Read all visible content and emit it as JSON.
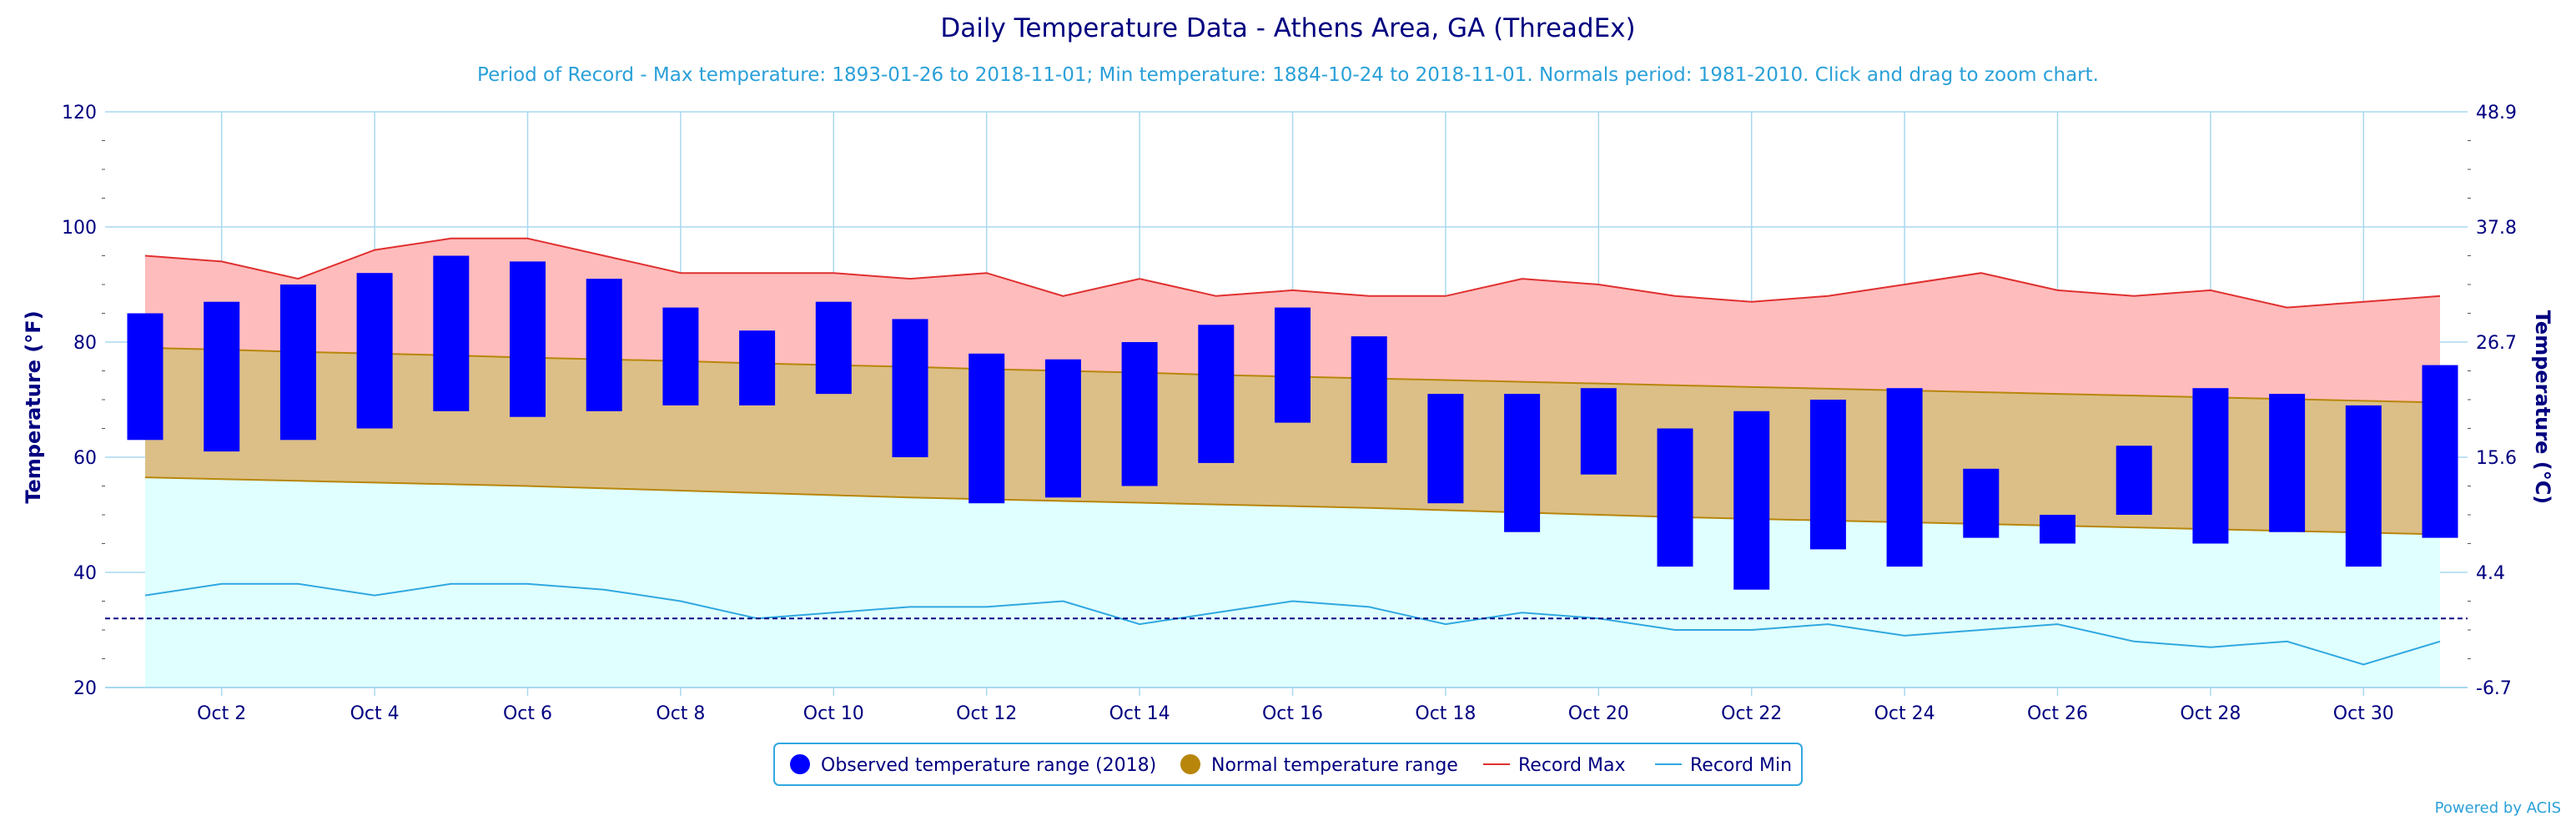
{
  "title": "Daily Temperature Data - Athens Area, GA (ThreadEx)",
  "subtitle": "Period of Record - Max temperature: 1893-01-26 to 2018-11-01; Min temperature: 1884-10-24 to 2018-11-01. Normals period: 1981-2010. Click and drag to zoom chart.",
  "y_axis_left_title": "Temperature (°F)",
  "y_axis_right_title": "Temperature (°C)",
  "credits": "Powered by ACIS",
  "legend": {
    "observed": "Observed temperature range (2018)",
    "normal": "Normal temperature range",
    "record_max": "Record Max",
    "record_min": "Record Min"
  },
  "colors": {
    "observed": "#0000ff",
    "normal_fill": "#dcbf86",
    "normal_line": "#b8860b",
    "record_max_line": "#e03030",
    "record_max_fill": "#ffbcbc",
    "record_min_line": "#30a8e0",
    "record_min_fill": "#e0ffff",
    "freezing": "#000080",
    "grid": "#a8d8f0"
  },
  "chart_data": {
    "type": "bar",
    "days": [
      1,
      2,
      3,
      4,
      5,
      6,
      7,
      8,
      9,
      10,
      11,
      12,
      13,
      14,
      15,
      16,
      17,
      18,
      19,
      20,
      21,
      22,
      23,
      24,
      25,
      26,
      27,
      28,
      29,
      30,
      31
    ],
    "x_tick_labels": [
      "Oct 2",
      "Oct 4",
      "Oct 6",
      "Oct 8",
      "Oct 10",
      "Oct 12",
      "Oct 14",
      "Oct 16",
      "Oct 18",
      "Oct 20",
      "Oct 22",
      "Oct 24",
      "Oct 26",
      "Oct 28",
      "Oct 30"
    ],
    "x_tick_days": [
      2,
      4,
      6,
      8,
      10,
      12,
      14,
      16,
      18,
      20,
      22,
      24,
      26,
      28,
      30
    ],
    "ylim": [
      20,
      120
    ],
    "y_ticks_f": [
      20,
      40,
      60,
      80,
      100,
      120
    ],
    "y_ticks_c": [
      "-6.7",
      "4.4",
      "15.6",
      "26.7",
      "37.8",
      "48.9"
    ],
    "freezing_line": 32,
    "observed_max": [
      85,
      87,
      90,
      92,
      95,
      94,
      91,
      86,
      82,
      87,
      84,
      78,
      77,
      80,
      83,
      86,
      81,
      71,
      71,
      72,
      65,
      68,
      70,
      72,
      58,
      50,
      62,
      72,
      71,
      69,
      76
    ],
    "observed_min": [
      63,
      61,
      63,
      65,
      68,
      67,
      68,
      69,
      69,
      71,
      60,
      52,
      53,
      55,
      59,
      66,
      59,
      52,
      47,
      57,
      41,
      37,
      44,
      41,
      46,
      45,
      50,
      45,
      47,
      41,
      46
    ],
    "normal_max": [
      79,
      78.7,
      78.3,
      78,
      77.7,
      77.3,
      77,
      76.7,
      76.3,
      76,
      75.7,
      75.3,
      75,
      74.7,
      74.3,
      74,
      73.7,
      73.4,
      73.1,
      72.8,
      72.5,
      72.2,
      71.9,
      71.6,
      71.3,
      71,
      70.7,
      70.4,
      70.1,
      69.8,
      69.5
    ],
    "normal_min": [
      56.5,
      56.2,
      55.9,
      55.6,
      55.3,
      55,
      54.6,
      54.2,
      53.8,
      53.4,
      53,
      52.7,
      52.4,
      52.1,
      51.8,
      51.5,
      51.2,
      50.8,
      50.4,
      50,
      49.6,
      49.3,
      49,
      48.7,
      48.4,
      48.1,
      47.8,
      47.5,
      47.2,
      46.9,
      46.6
    ],
    "record_max": [
      95,
      94,
      91,
      96,
      98,
      98,
      95,
      92,
      92,
      92,
      91,
      92,
      88,
      91,
      88,
      89,
      88,
      88,
      91,
      90,
      88,
      87,
      88,
      90,
      92,
      89,
      88,
      89,
      86,
      87,
      88
    ],
    "record_min": [
      36,
      38,
      38,
      36,
      38,
      38,
      37,
      35,
      32,
      33,
      34,
      34,
      35,
      31,
      33,
      35,
      34,
      31,
      33,
      32,
      30,
      30,
      31,
      29,
      30,
      31,
      28,
      27,
      28,
      24,
      28
    ]
  }
}
